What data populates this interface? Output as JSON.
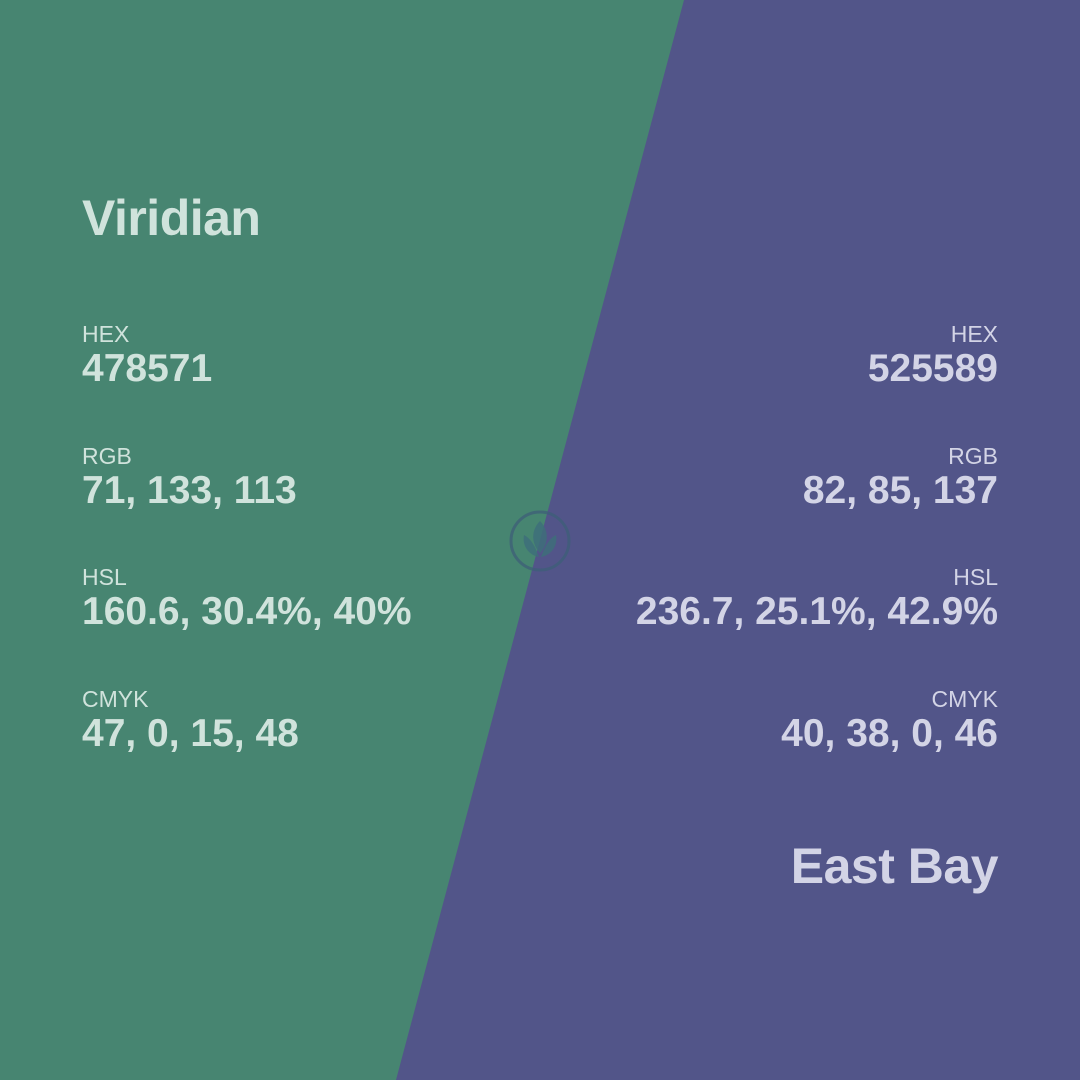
{
  "colors": {
    "left_bg": "#478571",
    "right_bg": "#525589",
    "left_text": "#D0E3DC",
    "right_text": "#D3D4E6",
    "logo_stroke": "#3E5F78"
  },
  "left_swatch": {
    "name": "Viridian",
    "hex_label": "HEX",
    "hex_value": "478571",
    "rgb_label": "RGB",
    "rgb_value": "71, 133, 113",
    "hsl_label": "HSL",
    "hsl_value": "160.6, 30.4%, 40%",
    "cmyk_label": "CMYK",
    "cmyk_value": "47, 0, 15, 48"
  },
  "right_swatch": {
    "name": "East Bay",
    "hex_label": "HEX",
    "hex_value": "525589",
    "rgb_label": "RGB",
    "rgb_value": "82, 85, 137",
    "hsl_label": "HSL",
    "hsl_value": "236.7, 25.1%, 42.9%",
    "cmyk_label": "CMYK",
    "cmyk_value": "40, 38, 0, 46"
  },
  "logo": {
    "icon": "leaf-logo-icon"
  }
}
